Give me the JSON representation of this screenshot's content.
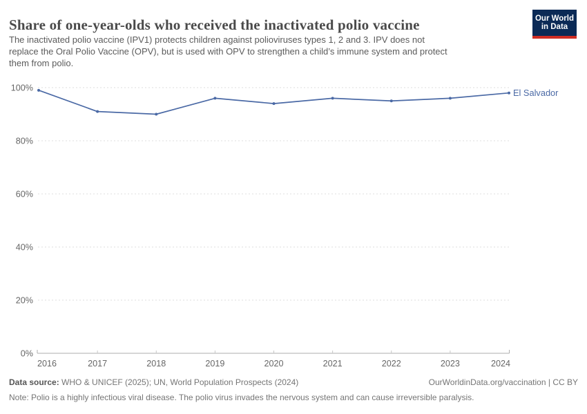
{
  "header": {
    "title": "Share of one-year-olds who received the inactivated polio vaccine",
    "subtitle_lines": [
      "The inactivated polio vaccine (IPV1) protects children against polioviruses types 1, 2 and 3. IPV does not",
      "replace the Oral Polio Vaccine (OPV), but is used with OPV to strengthen a child’s immune system and protect",
      "them from polio."
    ],
    "logo": {
      "line1": "Our World",
      "line2": "in Data"
    }
  },
  "footer": {
    "source_label": "Data source:",
    "source_text": " WHO & UNICEF (2025); UN, World Population Prospects (2024)",
    "link_text": "OurWorldinData.org/vaccination | CC BY",
    "note_label": "Note:",
    "note_text": " Polio is a highly infectious viral disease. The polio virus invades the nervous system and can cause irreversible paralysis."
  },
  "chart_data": {
    "type": "line",
    "title": "Share of one-year-olds who received the inactivated polio vaccine",
    "x": [
      2016,
      2017,
      2018,
      2019,
      2020,
      2021,
      2022,
      2023,
      2024
    ],
    "series": [
      {
        "name": "El Salvador",
        "values": [
          99,
          91,
          90,
          96,
          94,
          96,
          95,
          96,
          98
        ],
        "color": "#4a69a5"
      }
    ],
    "xlabel": "",
    "ylabel": "",
    "ylim": [
      0,
      100
    ],
    "yticks": [
      0,
      20,
      40,
      60,
      80,
      100
    ],
    "ytick_suffix": "%",
    "grid": "horizontal-dashed",
    "legend_position": "end-of-line"
  },
  "colors": {
    "line": "#4a69a5",
    "grid": "#dedede",
    "axis": "#aeaeae",
    "tick": "#c6c6c6",
    "axis_text": "#666666",
    "logo_bg": "#0b2a56",
    "logo_stripe": "#cf2d24"
  }
}
